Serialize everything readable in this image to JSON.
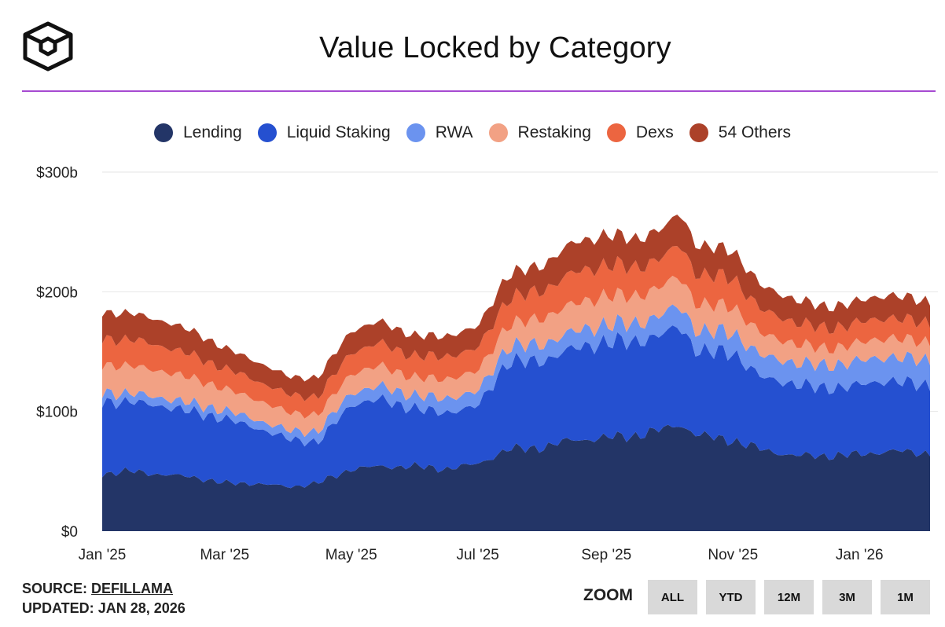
{
  "title": "Value Locked by Category",
  "source_label": "SOURCE:",
  "source_name": "DEFILLAMA",
  "updated_label": "UPDATED:",
  "updated_date": "JAN 28, 2026",
  "zoom": {
    "label": "ZOOM",
    "buttons": [
      "ALL",
      "YTD",
      "12M",
      "3M",
      "1M"
    ]
  },
  "colors": {
    "title_rule": "#a64ad1",
    "Lending": "#233567",
    "Liquid Staking": "#2550d0",
    "RWA": "#6b93ef",
    "Restaking": "#f2a184",
    "Dexs": "#ec6540",
    "54 Others": "#ac4129"
  },
  "chart_data": {
    "type": "area",
    "stacked": true,
    "title": "Value Locked by Category",
    "x_ticks": [
      "Jan '25",
      "Mar '25",
      "May '25",
      "Jul '25",
      "Sep '25",
      "Nov '25",
      "Jan '26"
    ],
    "x_tick_dates": [
      "2025-01-01",
      "2025-03-01",
      "2025-05-01",
      "2025-07-01",
      "2025-09-01",
      "2025-11-01",
      "2026-01-01"
    ],
    "x_range": [
      "2025-01-01",
      "2026-02-04"
    ],
    "y_ticks": [
      "$0",
      "$100b",
      "$200b",
      "$300b"
    ],
    "ylim": [
      0,
      300
    ],
    "y_unit": "billions USD",
    "grid": true,
    "legend_position": "top-center",
    "x": [
      "2025-01-01",
      "2025-01-15",
      "2025-02-01",
      "2025-02-15",
      "2025-03-01",
      "2025-03-15",
      "2025-04-01",
      "2025-04-15",
      "2025-05-01",
      "2025-05-15",
      "2025-06-01",
      "2025-06-15",
      "2025-07-01",
      "2025-07-15",
      "2025-08-01",
      "2025-08-15",
      "2025-09-01",
      "2025-09-15",
      "2025-10-01",
      "2025-10-06",
      "2025-10-15",
      "2025-11-01",
      "2025-11-15",
      "2025-12-01",
      "2025-12-15",
      "2026-01-01",
      "2026-01-15",
      "2026-02-04"
    ],
    "series": [
      {
        "name": "Lending",
        "values": [
          48,
          50,
          47,
          45,
          40,
          40,
          37,
          40,
          52,
          54,
          54,
          52,
          56,
          68,
          70,
          76,
          78,
          80,
          86,
          90,
          80,
          76,
          68,
          63,
          63,
          64,
          67,
          65
        ]
      },
      {
        "name": "Liquid Staking",
        "values": [
          60,
          58,
          57,
          54,
          54,
          47,
          40,
          34,
          54,
          56,
          48,
          47,
          48,
          73,
          72,
          76,
          80,
          78,
          80,
          82,
          70,
          73,
          60,
          60,
          56,
          58,
          59,
          56
        ]
      },
      {
        "name": "RWA",
        "values": [
          8,
          7,
          7,
          7,
          7,
          7,
          7,
          9,
          10,
          11,
          11,
          12,
          12,
          13,
          14,
          14,
          15,
          15,
          17,
          17,
          17,
          17,
          18,
          18,
          19,
          20,
          20,
          21
        ]
      },
      {
        "name": "Restaking",
        "values": [
          23,
          23,
          22,
          21,
          18,
          17,
          15,
          14,
          16,
          17,
          15,
          16,
          17,
          18,
          22,
          23,
          24,
          23,
          24,
          25,
          22,
          22,
          18,
          16,
          14,
          15,
          16,
          15
        ]
      },
      {
        "name": "Dexs",
        "values": [
          22,
          22,
          21,
          19,
          17,
          16,
          15,
          15,
          18,
          19,
          18,
          19,
          19,
          22,
          23,
          26,
          26,
          24,
          24,
          27,
          25,
          24,
          20,
          18,
          17,
          17,
          17,
          16
        ]
      },
      {
        "name": "54 Others",
        "values": [
          22,
          22,
          21,
          20,
          17,
          16,
          15,
          16,
          18,
          18,
          17,
          17,
          18,
          20,
          21,
          25,
          25,
          24,
          24,
          27,
          24,
          23,
          20,
          19,
          18,
          18,
          19,
          18
        ]
      }
    ]
  }
}
